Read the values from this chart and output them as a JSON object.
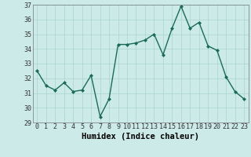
{
  "x": [
    0,
    1,
    2,
    3,
    4,
    5,
    6,
    7,
    8,
    9,
    10,
    11,
    12,
    13,
    14,
    15,
    16,
    17,
    18,
    19,
    20,
    21,
    22,
    23
  ],
  "y": [
    32.5,
    31.5,
    31.2,
    31.7,
    31.1,
    31.2,
    32.2,
    29.4,
    30.6,
    34.3,
    34.3,
    34.4,
    34.6,
    35.0,
    33.6,
    35.4,
    36.9,
    35.4,
    35.8,
    34.2,
    33.9,
    32.1,
    31.1,
    30.6
  ],
  "line_color": "#1a6b5a",
  "marker": "D",
  "marker_size": 2.0,
  "bg_color": "#cceae8",
  "grid_color": "#aad4d0",
  "xlabel": "Humidex (Indice chaleur)",
  "ylim": [
    29,
    37
  ],
  "yticks": [
    29,
    30,
    31,
    32,
    33,
    34,
    35,
    36,
    37
  ],
  "xticks": [
    0,
    1,
    2,
    3,
    4,
    5,
    6,
    7,
    8,
    9,
    10,
    11,
    12,
    13,
    14,
    15,
    16,
    17,
    18,
    19,
    20,
    21,
    22,
    23
  ],
  "tick_fontsize": 6.0,
  "xlabel_fontsize": 7.5,
  "line_width": 1.0
}
